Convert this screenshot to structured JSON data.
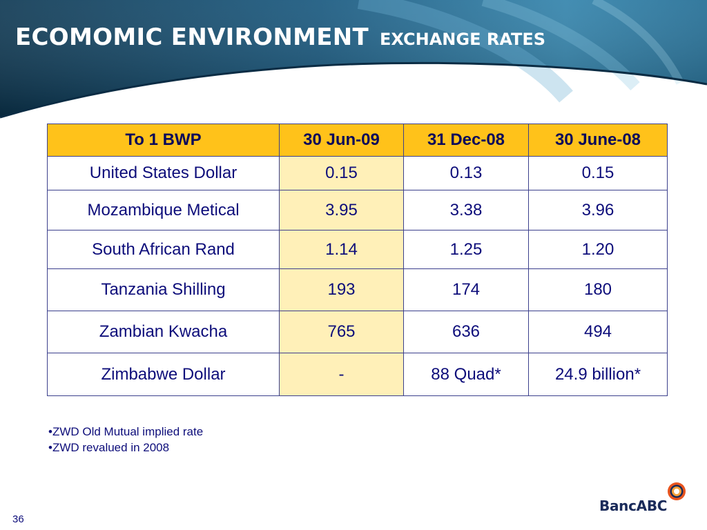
{
  "slide": {
    "title": "ECOMOMIC ENVIRONMENT",
    "subtitle": "EXCHANGE RATES",
    "page_number": "36"
  },
  "table": {
    "headers": [
      "To 1 BWP",
      "30 Jun-09",
      "31 Dec-08",
      "30 June-08"
    ],
    "rows": [
      [
        "United States Dollar",
        "0.15",
        "0.13",
        "0.15"
      ],
      [
        "Mozambique Metical",
        "3.95",
        "3.38",
        "3.96"
      ],
      [
        "South African Rand",
        "1.14",
        "1.25",
        "1.20"
      ],
      [
        "Tanzania Shilling",
        "193",
        "174",
        "180"
      ],
      [
        "Zambian Kwacha",
        "765",
        "636",
        "494"
      ],
      [
        "Zimbabwe Dollar",
        "-",
        "88 Quad*",
        "24.9 billion*"
      ]
    ]
  },
  "notes": [
    "•ZWD Old Mutual implied rate",
    "•ZWD revalued in 2008"
  ],
  "logo": {
    "name_bold": "Banc",
    "name_light": "ABC",
    "icon": "concentric-rings-icon"
  },
  "colors": {
    "header_bg": "#ffc21a",
    "highlight_column": "#fff0b8",
    "text": "#0d0d7a",
    "banner_dark": "#0b3c5c",
    "banner_light": "#2f7fa8",
    "logo_ring": "#e8541e"
  }
}
